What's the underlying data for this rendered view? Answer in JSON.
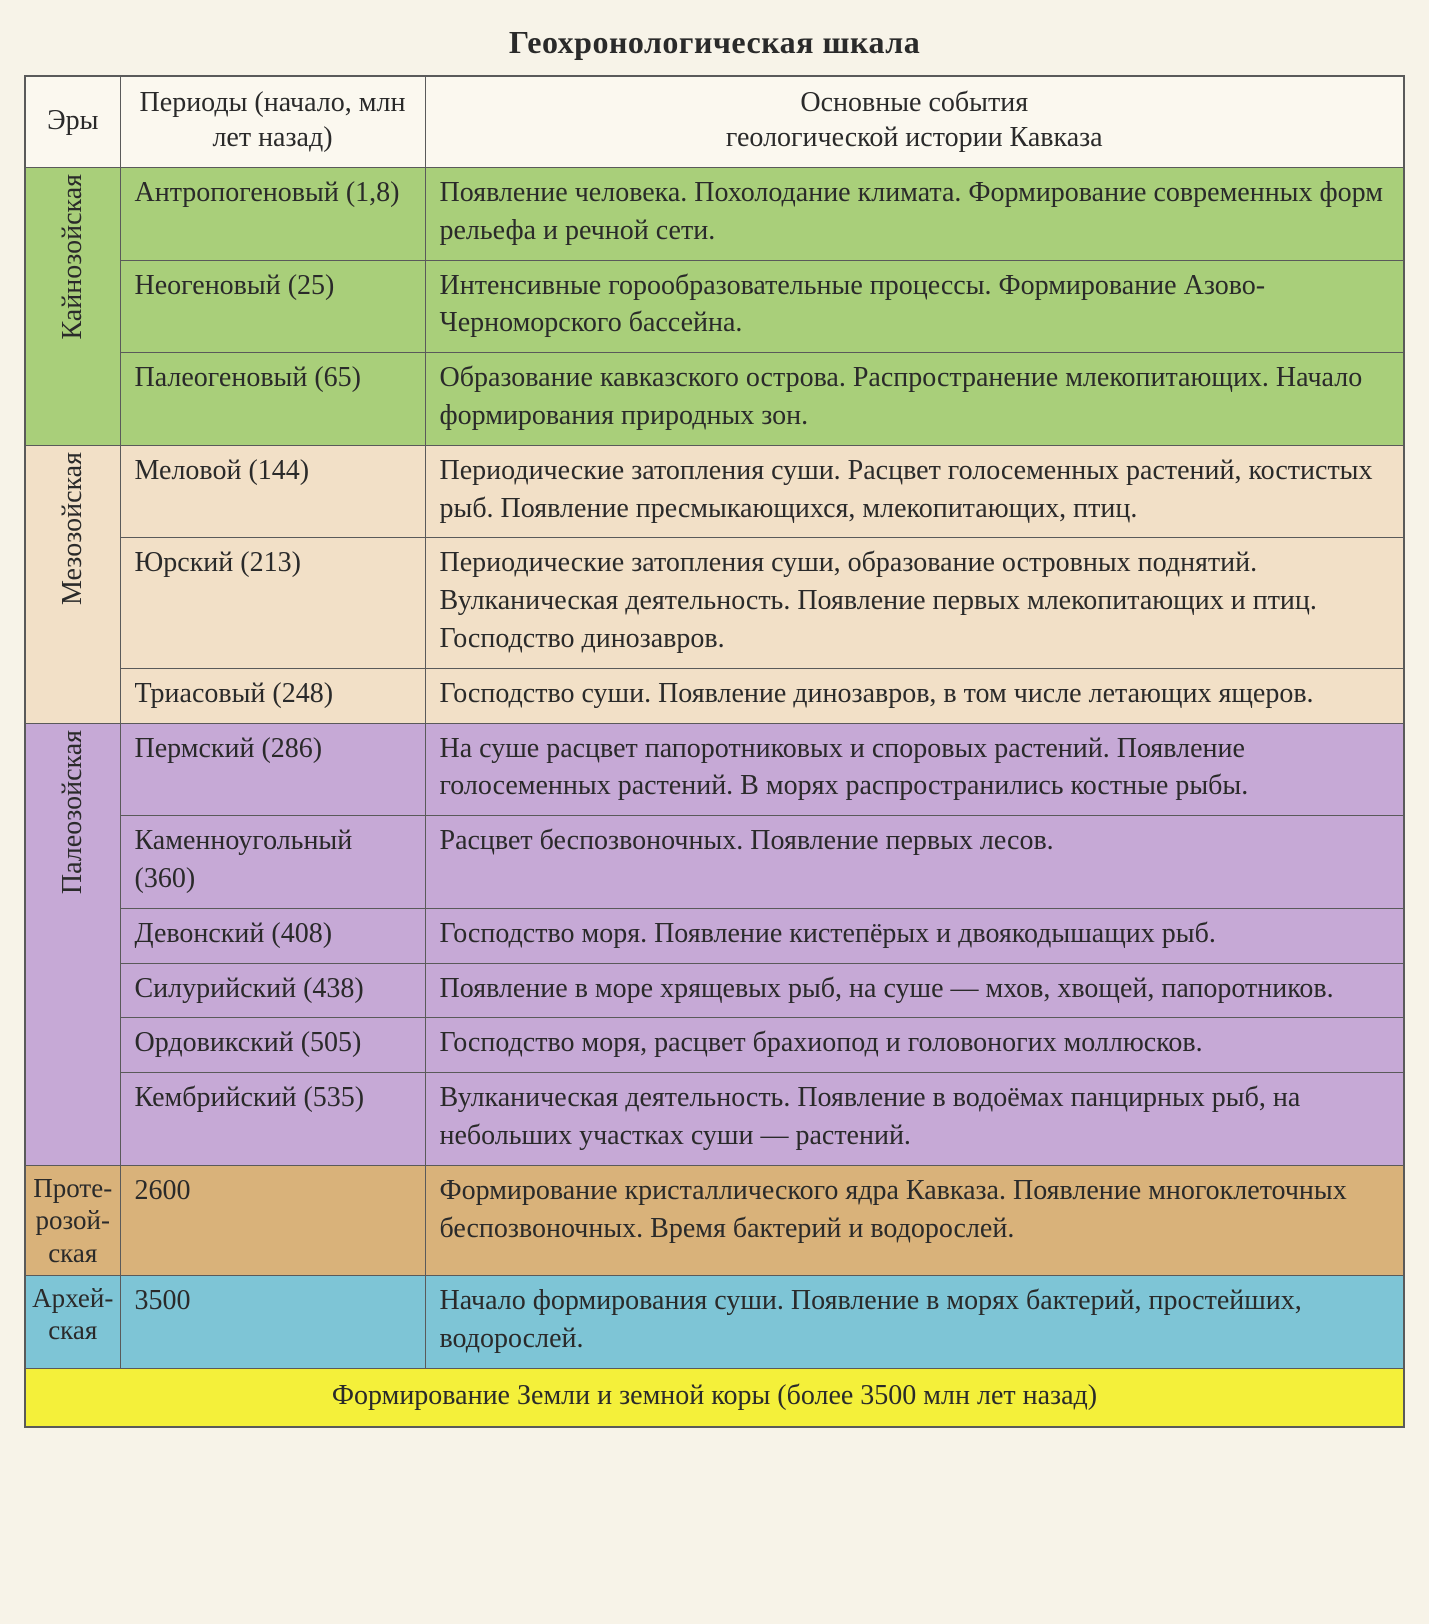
{
  "title": "Геохронологическая шкала",
  "columns": {
    "era": "Эры",
    "period": "Периоды (начало, млн лет назад)",
    "events_line1": "Основные события",
    "events_line2": "геологической истории Кавказа"
  },
  "colors": {
    "cenozoic": "#a9cf7a",
    "mesozoic": "#f2e0c7",
    "paleozoic": "#c6a9d6",
    "proterozoic": "#d9b27a",
    "archean": "#7ec5d6",
    "footer": "#f4f03a",
    "header_bg": "#fbf8ef",
    "border": "#5a5a5a",
    "page_bg": "#f7f3e8",
    "text": "#2a2a2a"
  },
  "typography": {
    "title_fontsize": 32,
    "cell_fontsize": 28,
    "font_family": "Georgia / Times serif"
  },
  "eras": {
    "cenozoic": "Кайнозойская",
    "mesozoic": "Мезозойская",
    "paleozoic": "Палеозойская",
    "proterozoic": "Проте­розой­ская",
    "archean": "Архей­ская"
  },
  "rows": {
    "cenozoic": [
      {
        "period": "Антропогеновый (1,8)",
        "events": "Появление человека. Похолодание климата. Формирование современных форм рельефа и речной сети."
      },
      {
        "period": "Неогеновый (25)",
        "events": "Интенсивные горообразовательные процессы. Формирование Азово-Черноморского бассейна."
      },
      {
        "period": "Палеогеновый (65)",
        "events": "Образование кавказского острова. Распростране­ние млекопитающих. Начало формирования природных зон."
      }
    ],
    "mesozoic": [
      {
        "period": "Меловой (144)",
        "events": "Периодические затопления суши. Расцвет голо­семенных растений, костистых рыб. Появление пресмыкающихся, млекопитающих, птиц."
      },
      {
        "period": "Юрский (213)",
        "events": "Периодические затопления суши, образование островных поднятий. Вулканическая деятель­ность. Появление первых млекопитающих и птиц. Господство динозавров."
      },
      {
        "period": "Триасовый (248)",
        "events": "Господство суши. Появление динозавров, в том числе летающих ящеров."
      }
    ],
    "paleozoic": [
      {
        "period": "Пермский (286)",
        "events": "На суше расцвет папоротниковых и споровых растений. Появление голосеменных растений. В морях распространились костные рыбы."
      },
      {
        "period": "Каменноугольный (360)",
        "events": "Расцвет беспозвоночных. Появление первых лесов."
      },
      {
        "period": "Девонский (408)",
        "events": "Господство моря. Появление кистепёрых и двоякодышащих рыб."
      },
      {
        "period": "Силурийский (438)",
        "events": "Появление в море хрящевых рыб, на суше — мхов, хвощей, папоротников."
      },
      {
        "period": "Ордовикский (505)",
        "events": "Господство моря, расцвет брахиопод и голово­ногих моллюсков."
      },
      {
        "period": "Кембрийский (535)",
        "events": "Вулканическая деятельность. Появление в водоёмах панцирных рыб, на небольших участках суши — растений."
      }
    ],
    "proterozoic": [
      {
        "period": "2600",
        "events": "Формирование кристаллического ядра Кавказа. Появление многоклеточных беспозвоночных. Время бактерий и водорослей."
      }
    ],
    "archean": [
      {
        "period": "3500",
        "events": "Начало формирования суши. Появление в морях бактерий, простейших, водорослей."
      }
    ]
  },
  "footer": "Формирование Земли и земной коры (более 3500 млн лет назад)"
}
